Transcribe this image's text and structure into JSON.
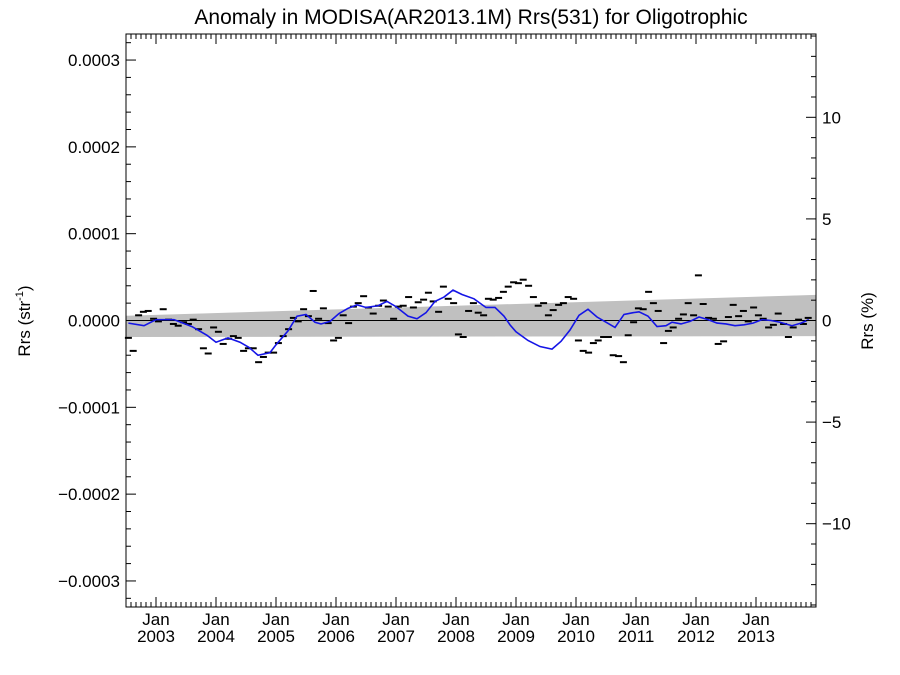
{
  "chart_data": {
    "type": "line",
    "title": "Anomaly in MODISA(AR2013.1M) Rrs(531) for Oligotrophic",
    "ylabel_left": {
      "main": "Rrs (str",
      "sup": "-1",
      "close": ")"
    },
    "ylabel_right": "Rrs (%)",
    "xlim": [
      2002.5,
      2014.0
    ],
    "ylim": [
      -0.00033,
      0.00033
    ],
    "ylim_right_percent": [
      -14.1,
      14.1
    ],
    "grid": false,
    "y_ticks": [
      {
        "value": 0.0003,
        "label": "0.0003"
      },
      {
        "value": 0.0002,
        "label": "0.0002"
      },
      {
        "value": 0.0001,
        "label": "0.0001"
      },
      {
        "value": 0.0,
        "label": "0.0000"
      },
      {
        "value": -0.0001,
        "label": "−0.0001"
      },
      {
        "value": -0.0002,
        "label": "−0.0002"
      },
      {
        "value": -0.0003,
        "label": "−0.0003"
      }
    ],
    "y_ticks_right": [
      {
        "value": 10,
        "label": "10"
      },
      {
        "value": 5,
        "label": "5"
      },
      {
        "value": 0,
        "label": "0"
      },
      {
        "value": -5,
        "label": "−5"
      },
      {
        "value": -10,
        "label": "−10"
      }
    ],
    "x_ticks": [
      {
        "value": 2003.0,
        "month": "Jan",
        "year": "2003"
      },
      {
        "value": 2004.0,
        "month": "Jan",
        "year": "2004"
      },
      {
        "value": 2005.0,
        "month": "Jan",
        "year": "2005"
      },
      {
        "value": 2006.0,
        "month": "Jan",
        "year": "2006"
      },
      {
        "value": 2007.0,
        "month": "Jan",
        "year": "2007"
      },
      {
        "value": 2008.0,
        "month": "Jan",
        "year": "2008"
      },
      {
        "value": 2009.0,
        "month": "Jan",
        "year": "2009"
      },
      {
        "value": 2010.0,
        "month": "Jan",
        "year": "2010"
      },
      {
        "value": 2011.0,
        "month": "Jan",
        "year": "2011"
      },
      {
        "value": 2012.0,
        "month": "Jan",
        "year": "2012"
      },
      {
        "value": 2013.0,
        "month": "Jan",
        "year": "2013"
      }
    ],
    "trend_band": {
      "x": [
        2002.5,
        2014.0
      ],
      "upper": [
        5.5e-06,
        2.95e-05
      ],
      "lower": [
        -1.9e-05,
        -1.8e-05
      ],
      "color": "#c0c0c0"
    },
    "zero_line": 0.0,
    "series": [
      {
        "kind": "monthly",
        "color": "#000000",
        "x": [
          2002.54,
          2002.62,
          2002.71,
          2002.79,
          2002.87,
          2002.96,
          2003.04,
          2003.12,
          2003.21,
          2003.29,
          2003.37,
          2003.46,
          2003.54,
          2003.62,
          2003.71,
          2003.79,
          2003.87,
          2003.96,
          2004.04,
          2004.12,
          2004.21,
          2004.29,
          2004.37,
          2004.46,
          2004.54,
          2004.62,
          2004.71,
          2004.79,
          2004.87,
          2004.96,
          2005.04,
          2005.12,
          2005.21,
          2005.29,
          2005.37,
          2005.46,
          2005.54,
          2005.62,
          2005.71,
          2005.79,
          2005.87,
          2005.96,
          2006.04,
          2006.12,
          2006.21,
          2006.29,
          2006.37,
          2006.46,
          2006.54,
          2006.62,
          2006.71,
          2006.79,
          2006.87,
          2006.96,
          2007.04,
          2007.12,
          2007.21,
          2007.29,
          2007.37,
          2007.46,
          2007.54,
          2007.62,
          2007.71,
          2007.79,
          2007.87,
          2007.96,
          2008.04,
          2008.12,
          2008.21,
          2008.29,
          2008.37,
          2008.46,
          2008.54,
          2008.62,
          2008.71,
          2008.79,
          2008.87,
          2008.96,
          2009.04,
          2009.12,
          2009.21,
          2009.29,
          2009.37,
          2009.46,
          2009.54,
          2009.62,
          2009.71,
          2009.79,
          2009.87,
          2009.96,
          2010.04,
          2010.12,
          2010.21,
          2010.29,
          2010.37,
          2010.46,
          2010.54,
          2010.62,
          2010.71,
          2010.79,
          2010.87,
          2010.96,
          2011.04,
          2011.12,
          2011.21,
          2011.29,
          2011.37,
          2011.46,
          2011.54,
          2011.62,
          2011.71,
          2011.79,
          2011.87,
          2011.96,
          2012.04,
          2012.12,
          2012.21,
          2012.29,
          2012.37,
          2012.46,
          2012.54,
          2012.62,
          2012.71,
          2012.79,
          2012.87,
          2012.96,
          2013.04,
          2013.12,
          2013.21,
          2013.29,
          2013.37,
          2013.46,
          2013.54,
          2013.62,
          2013.71,
          2013.79,
          2013.87
        ],
        "values": [
          -2e-05,
          -3.5e-05,
          6e-06,
          1e-05,
          1.1e-05,
          2e-06,
          -1e-06,
          1.3e-05,
          1e-06,
          -4e-06,
          -6e-06,
          -2e-06,
          -4e-06,
          1e-06,
          -1e-05,
          -3.2e-05,
          -3.8e-05,
          -8e-06,
          -1.3e-05,
          -2.7e-05,
          -2.1e-05,
          -1.8e-05,
          -2e-05,
          -3.5e-05,
          -3.2e-05,
          -3.2e-05,
          -4.8e-05,
          -4.2e-05,
          -3.7e-05,
          -3.7e-05,
          -2.6e-05,
          -1.8e-05,
          -1e-05,
          3e-06,
          -1e-06,
          1.3e-05,
          5e-06,
          3.4e-05,
          2e-06,
          1.4e-05,
          -3e-06,
          -2.3e-05,
          -2e-05,
          6e-06,
          -3e-06,
          1.6e-05,
          2e-05,
          2.8e-05,
          1.5e-05,
          8e-06,
          1.7e-05,
          2.3e-05,
          1.6e-05,
          2e-06,
          1.6e-05,
          1.7e-05,
          2.7e-05,
          1.5e-05,
          2.1e-05,
          2.4e-05,
          3.2e-05,
          2.2e-05,
          1e-05,
          3.9e-05,
          2.5e-05,
          2e-05,
          -1.6e-05,
          -1.9e-05,
          1.1e-05,
          2e-05,
          9e-06,
          6e-06,
          2.5e-05,
          2.4e-05,
          2.6e-05,
          3.3e-05,
          3.9e-05,
          4.4e-05,
          4.3e-05,
          4.7e-05,
          4e-05,
          2.7e-05,
          1.7e-05,
          2e-05,
          6e-06,
          1.2e-05,
          1.8e-05,
          2e-05,
          2.7e-05,
          2.5e-05,
          -2.3e-05,
          -3.5e-05,
          -3.7e-05,
          -2.6e-05,
          -2.3e-05,
          -1.9e-05,
          -1.9e-05,
          -4e-05,
          -4.1e-05,
          -4.8e-05,
          -1.7e-05,
          -2e-06,
          1.4e-05,
          1.3e-05,
          3.3e-05,
          2e-05,
          1.1e-05,
          -2.6e-05,
          -1.2e-05,
          -8e-06,
          2e-06,
          7e-06,
          2e-05,
          6e-06,
          5.2e-05,
          1.9e-05,
          3e-06,
          2e-06,
          -2.7e-05,
          -2.4e-05,
          4e-06,
          1.8e-05,
          5e-06,
          1.1e-05,
          -1e-06,
          1.5e-05,
          6e-06,
          2e-06,
          -8e-06,
          -5e-06,
          8e-06,
          -4e-06,
          -1.9e-05,
          -8e-06,
          1e-06,
          -4e-06,
          3e-06
        ]
      },
      {
        "kind": "running_mean",
        "color": "#1515e6",
        "x": [
          2002.54,
          2002.8,
          2003.0,
          2003.3,
          2003.6,
          2003.85,
          2004.0,
          2004.2,
          2004.4,
          2004.55,
          2004.7,
          2004.9,
          2005.0,
          2005.2,
          2005.35,
          2005.5,
          2005.65,
          2005.75,
          2005.9,
          2006.05,
          2006.2,
          2006.35,
          2006.5,
          2006.7,
          2006.85,
          2007.0,
          2007.2,
          2007.35,
          2007.5,
          2007.65,
          2007.8,
          2007.95,
          2008.1,
          2008.3,
          2008.5,
          2008.65,
          2008.8,
          2008.9,
          2009.0,
          2009.2,
          2009.4,
          2009.6,
          2009.75,
          2009.9,
          2010.05,
          2010.2,
          2010.35,
          2010.5,
          2010.65,
          2010.8,
          2010.95,
          2011.05,
          2011.2,
          2011.35,
          2011.5,
          2011.6,
          2011.75,
          2011.9,
          2012.05,
          2012.2,
          2012.35,
          2012.5,
          2012.65,
          2012.8,
          2012.95,
          2013.1,
          2013.25,
          2013.4,
          2013.6,
          2013.75,
          2013.88
        ],
        "values": [
          -3e-06,
          -6e-06,
          1e-06,
          1e-06,
          -7e-06,
          -1.7e-05,
          -2.5e-05,
          -2e-05,
          -2.5e-05,
          -3.1e-05,
          -4e-05,
          -3.7e-05,
          -2.8e-05,
          -1.2e-05,
          5e-06,
          7e-06,
          -2e-06,
          -4e-06,
          -1e-06,
          8e-06,
          1.4e-05,
          1.8e-05,
          1.5e-05,
          1.7e-05,
          2.2e-05,
          1.6e-05,
          5e-06,
          2e-06,
          9e-06,
          2.2e-05,
          2.7e-05,
          3.5e-05,
          3e-05,
          2.5e-05,
          1.5e-05,
          1.5e-05,
          5e-06,
          -5e-06,
          -1.3e-05,
          -2.3e-05,
          -3e-05,
          -3.3e-05,
          -2.4e-05,
          -1.1e-05,
          6e-06,
          1.3e-05,
          4e-06,
          -2e-06,
          -8e-06,
          7e-06,
          9e-06,
          1e-05,
          5e-06,
          -7e-06,
          -6e-06,
          -2e-06,
          -4e-06,
          -1e-06,
          4e-06,
          1e-06,
          -3e-06,
          -4e-06,
          -6e-06,
          -5e-06,
          -3e-06,
          1e-06,
          0.0,
          -2e-06,
          -6e-06,
          -3e-06,
          1e-06
        ]
      }
    ]
  }
}
